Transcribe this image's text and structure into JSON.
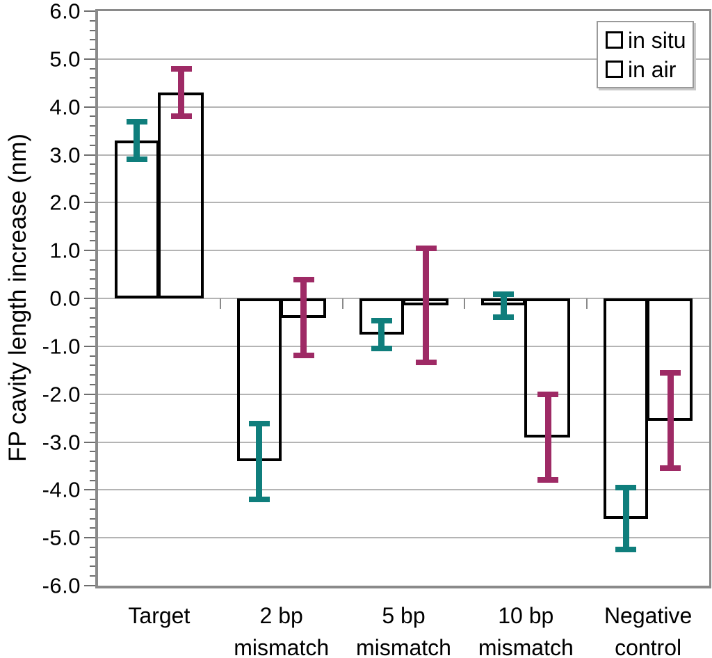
{
  "chart_data": {
    "type": "bar",
    "title": "",
    "xlabel": "",
    "ylabel": "FP cavity length increase (nm)",
    "categories": [
      "Target",
      "2 bp mismatch",
      "5 bp mismatch",
      "10 bp mismatch",
      "Negative control"
    ],
    "category_label_lines": [
      [
        "Target"
      ],
      [
        "2 bp",
        "mismatch"
      ],
      [
        "5 bp",
        "mismatch"
      ],
      [
        "10 bp",
        "mismatch"
      ],
      [
        "Negative",
        "control"
      ]
    ],
    "series": [
      {
        "name": "in situ",
        "color": "#0f7e7c",
        "hatch": "forward-diagonal",
        "values": [
          3.3,
          -3.4,
          -0.75,
          -0.15,
          -4.6
        ],
        "errors": [
          0.45,
          0.85,
          0.35,
          0.3,
          0.7
        ]
      },
      {
        "name": "in air",
        "color": "#9e2a65",
        "hatch": "backward-diagonal",
        "values": [
          4.3,
          -0.4,
          -0.15,
          -2.9,
          -2.55
        ],
        "errors": [
          0.55,
          0.85,
          1.25,
          0.95,
          1.05
        ]
      }
    ],
    "ylim": [
      -6.0,
      6.0
    ],
    "ytick_step": 1.0,
    "ytick_minor_step": 0.2,
    "ytick_labels": [
      "6.0",
      "5.0",
      "4.0",
      "3.0",
      "2.0",
      "1.0",
      "0.0",
      "-1.0",
      "-2.0",
      "-3.0",
      "-4.0",
      "-5.0",
      "-6.0"
    ],
    "grid": "horizontal-major",
    "legend": {
      "position": "top-right",
      "entries": [
        "in situ",
        "in air"
      ]
    }
  },
  "styles": {
    "background": "#ffffff",
    "grid_color": "#b4b4b4",
    "axis_color": "#8a8a8a",
    "bar_outline_color": "#000000",
    "text_color": "#000000"
  }
}
